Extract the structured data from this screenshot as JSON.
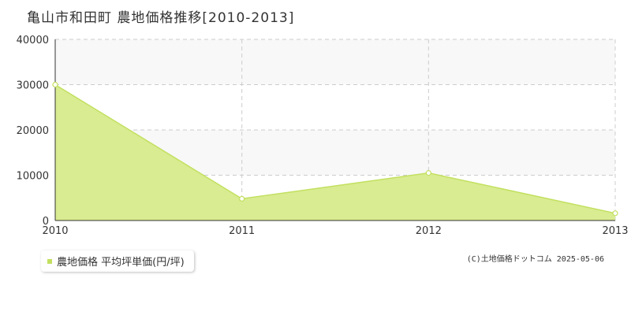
{
  "title": "亀山市和田町 農地価格推移[2010-2013]",
  "credit": "(C)土地価格ドットコム 2025-05-06",
  "colors": {
    "area_fill": "#d9ec91",
    "line": "#c2e060",
    "band": "#f8f8f8",
    "grid": "#cccccc",
    "axis": "#333333",
    "marker_fill": "#ffffff"
  },
  "chart_data": {
    "type": "area",
    "x": [
      2010,
      2011,
      2012,
      2013
    ],
    "series": [
      {
        "name": "農地価格 平均坪単価(円/坪)",
        "values": [
          30000,
          4800,
          10500,
          1600
        ]
      }
    ],
    "xlim": [
      2010,
      2013
    ],
    "ylim": [
      0,
      40000
    ],
    "x_ticks": [
      "2010",
      "2011",
      "2012",
      "2013"
    ],
    "y_ticks": [
      "0",
      "10000",
      "20000",
      "30000",
      "40000"
    ],
    "grid": true,
    "legend_position": "bottom-left"
  }
}
